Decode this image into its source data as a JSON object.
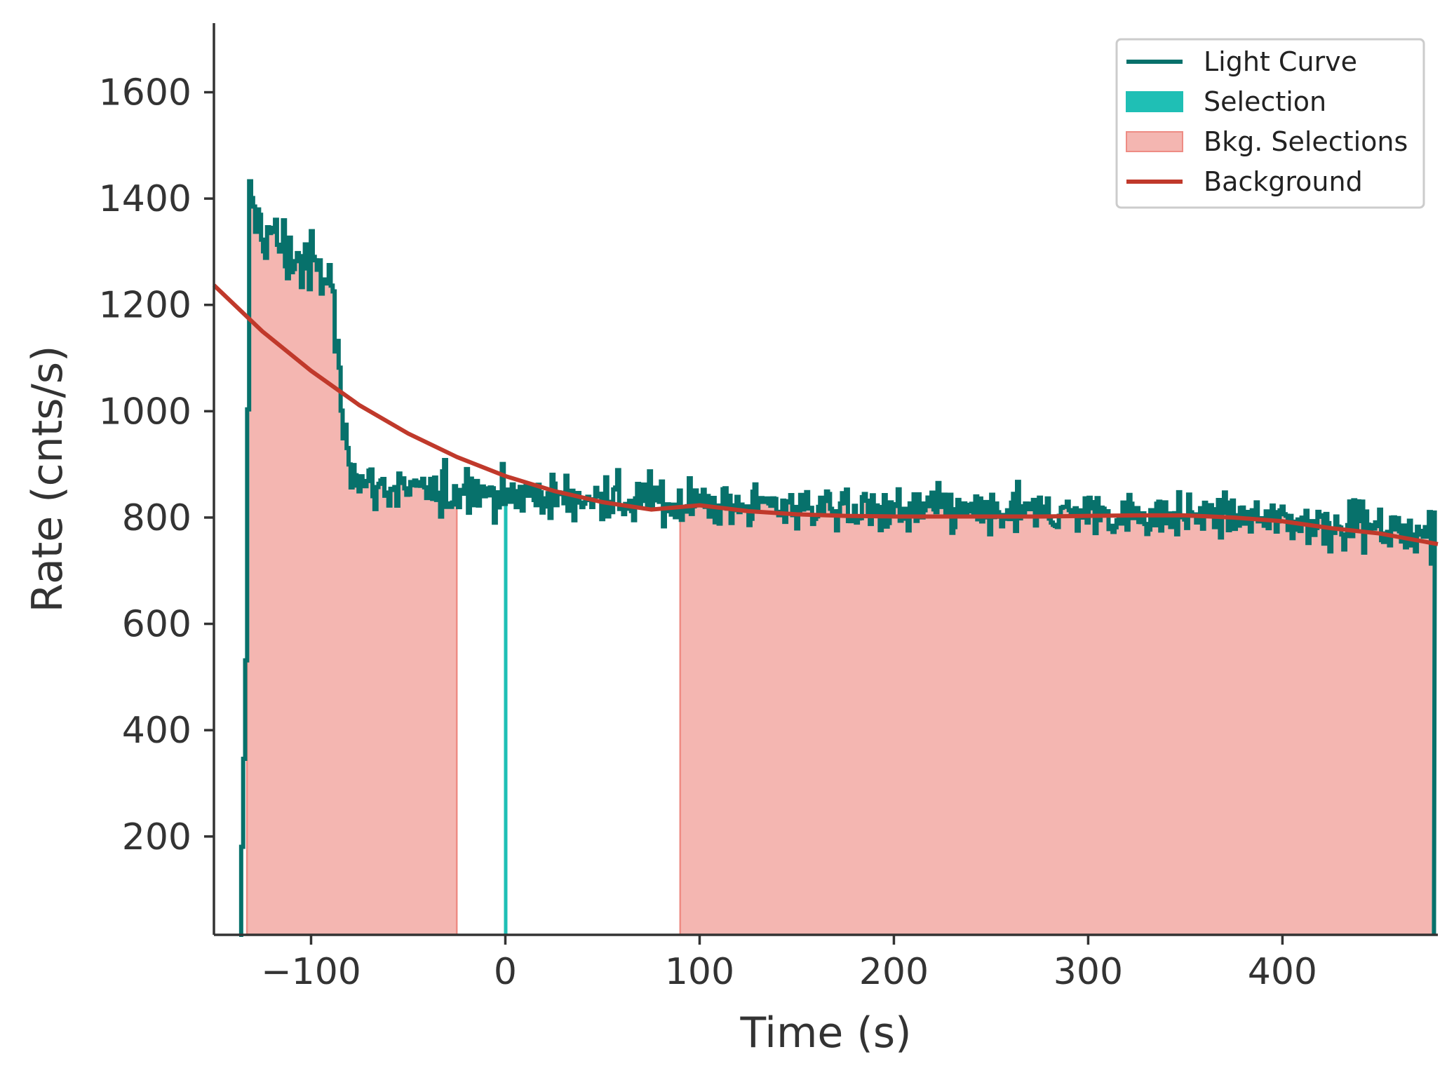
{
  "chart_data": {
    "type": "line",
    "title": "",
    "xlabel": "Time (s)",
    "ylabel": "Rate (cnts/s)",
    "xlim": [
      -150,
      480
    ],
    "ylim": [
      15,
      1730
    ],
    "x_ticks": [
      -100,
      0,
      100,
      200,
      300,
      400
    ],
    "x_tick_labels": [
      "−100",
      "0",
      "100",
      "200",
      "300",
      "400"
    ],
    "y_ticks": [
      200,
      400,
      600,
      800,
      1000,
      1200,
      1400,
      1600
    ],
    "y_tick_labels": [
      "200",
      "400",
      "600",
      "800",
      "1000",
      "1200",
      "1400",
      "1600"
    ],
    "grid": false,
    "legend_position": "top-right",
    "colors": {
      "light_curve": "#07716b",
      "selection": "#1fbfb5",
      "bkg_fill": "#f4b6b1",
      "bkg_edge": "#ee8c84",
      "background": "#c0392b",
      "axis": "#333333"
    },
    "legend": [
      {
        "label": "Light Curve",
        "kind": "line",
        "color": "#07716b"
      },
      {
        "label": "Selection",
        "kind": "patch",
        "color": "#1fbfb5"
      },
      {
        "label": "Bkg. Selections",
        "kind": "patch",
        "color": "#f4b6b1"
      },
      {
        "label": "Background",
        "kind": "line",
        "color": "#c0392b"
      }
    ],
    "light_curve": {
      "name": "Light Curve",
      "bin_width_s": 1.024,
      "keypoints": {
        "x": [
          -137,
          -134,
          -132,
          -130,
          -125,
          -120,
          -115,
          -110,
          -105,
          -100,
          -95,
          -90,
          -87,
          -85,
          -83,
          -80,
          -75,
          -70,
          -60,
          -50,
          -40,
          -30,
          -20,
          -10,
          0,
          20,
          50,
          100,
          150,
          200,
          250,
          300,
          350,
          400,
          450,
          478
        ],
        "y": [
          15,
          500,
          1370,
          1380,
          1340,
          1325,
          1310,
          1290,
          1280,
          1265,
          1255,
          1245,
          1120,
          1010,
          950,
          910,
          875,
          860,
          855,
          850,
          845,
          842,
          852,
          848,
          845,
          840,
          830,
          825,
          822,
          815,
          810,
          808,
          805,
          795,
          780,
          770
        ]
      },
      "noise_rms": 20,
      "end_drop_x": 478
    },
    "selection": {
      "name": "Selection",
      "x_range": [
        0,
        0.8
      ]
    },
    "bkg_selections": {
      "name": "Bkg. Selections",
      "ranges": [
        [
          -133,
          -25
        ],
        [
          90,
          478
        ]
      ]
    },
    "background": {
      "name": "Background",
      "x": [
        -150,
        -125,
        -100,
        -75,
        -50,
        -25,
        0,
        25,
        50,
        75,
        100,
        125,
        150,
        175,
        200,
        225,
        250,
        275,
        300,
        325,
        350,
        375,
        400,
        425,
        450,
        480
      ],
      "y": [
        1237,
        1150,
        1076,
        1011,
        958,
        914,
        878,
        850,
        829,
        815,
        823,
        812,
        806,
        803,
        802,
        802,
        802,
        802,
        803,
        804,
        804,
        800,
        793,
        780,
        770,
        750
      ]
    }
  }
}
